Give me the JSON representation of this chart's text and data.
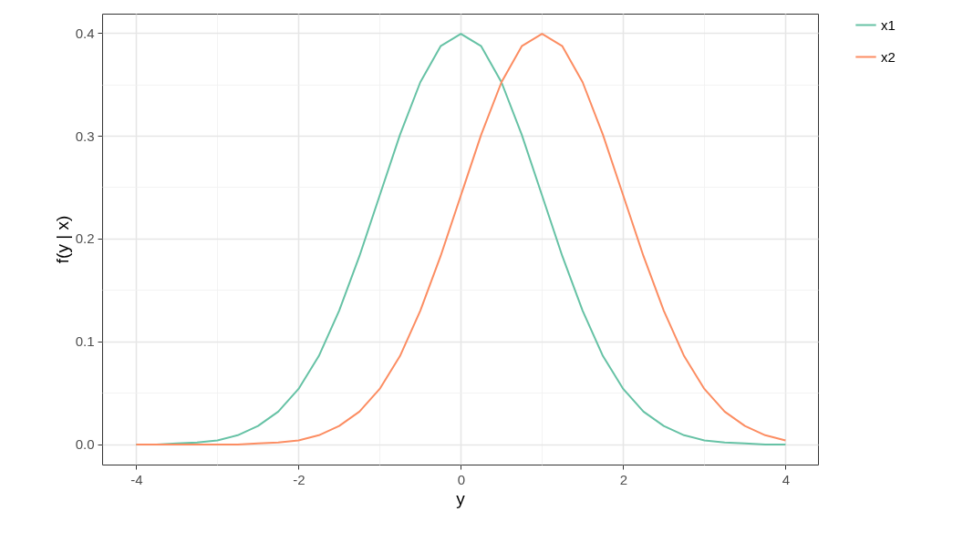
{
  "chart_data": {
    "type": "line",
    "xlabel": "y",
    "ylabel": "f(y | x)",
    "x": [
      -4,
      -3.75,
      -3.5,
      -3.25,
      -3,
      -2.75,
      -2.5,
      -2.25,
      -2,
      -1.75,
      -1.5,
      -1.25,
      -1,
      -0.75,
      -0.5,
      -0.25,
      0,
      0.25,
      0.5,
      0.75,
      1,
      1.25,
      1.5,
      1.75,
      2,
      2.25,
      2.5,
      2.75,
      3,
      3.25,
      3.5,
      3.75,
      4
    ],
    "series": [
      {
        "name": "x1",
        "color": "#66c2a5",
        "values": [
          0.0,
          0.0,
          0.001,
          0.002,
          0.004,
          0.009,
          0.018,
          0.032,
          0.054,
          0.086,
          0.13,
          0.183,
          0.242,
          0.301,
          0.352,
          0.387,
          0.399,
          0.387,
          0.352,
          0.301,
          0.242,
          0.183,
          0.13,
          0.086,
          0.054,
          0.032,
          0.018,
          0.009,
          0.004,
          0.002,
          0.001,
          0.0,
          0.0
        ]
      },
      {
        "name": "x2",
        "color": "#fc8d62",
        "values": [
          0.0,
          0.0,
          0.0,
          0.0,
          0.0,
          0.0,
          0.001,
          0.002,
          0.004,
          0.009,
          0.018,
          0.032,
          0.054,
          0.086,
          0.13,
          0.183,
          0.242,
          0.301,
          0.352,
          0.387,
          0.399,
          0.387,
          0.352,
          0.301,
          0.242,
          0.183,
          0.13,
          0.086,
          0.054,
          0.032,
          0.018,
          0.009,
          0.004
        ]
      }
    ],
    "xlim": [
      -4.42,
      4.4
    ],
    "xticks": [
      {
        "value": -4,
        "label": "-4"
      },
      {
        "value": -3,
        "label": null
      },
      {
        "value": -2,
        "label": "-2"
      },
      {
        "value": -1,
        "label": null
      },
      {
        "value": 0,
        "label": "0"
      },
      {
        "value": 1,
        "label": null
      },
      {
        "value": 2,
        "label": "2"
      },
      {
        "value": 3,
        "label": null
      },
      {
        "value": 4,
        "label": "4"
      }
    ],
    "ylim": [
      -0.0195,
      0.4186
    ],
    "yticks": [
      {
        "value": 0,
        "label": "0.0"
      },
      {
        "value": 0.05,
        "label": null
      },
      {
        "value": 0.1,
        "label": "0.1"
      },
      {
        "value": 0.15,
        "label": null
      },
      {
        "value": 0.2,
        "label": "0.2"
      },
      {
        "value": 0.25,
        "label": null
      },
      {
        "value": 0.3,
        "label": "0.3"
      },
      {
        "value": 0.35,
        "label": null
      },
      {
        "value": 0.4,
        "label": "0.4"
      }
    ],
    "grid": true,
    "legend": "right",
    "line_style": "solid",
    "marker": "none"
  }
}
